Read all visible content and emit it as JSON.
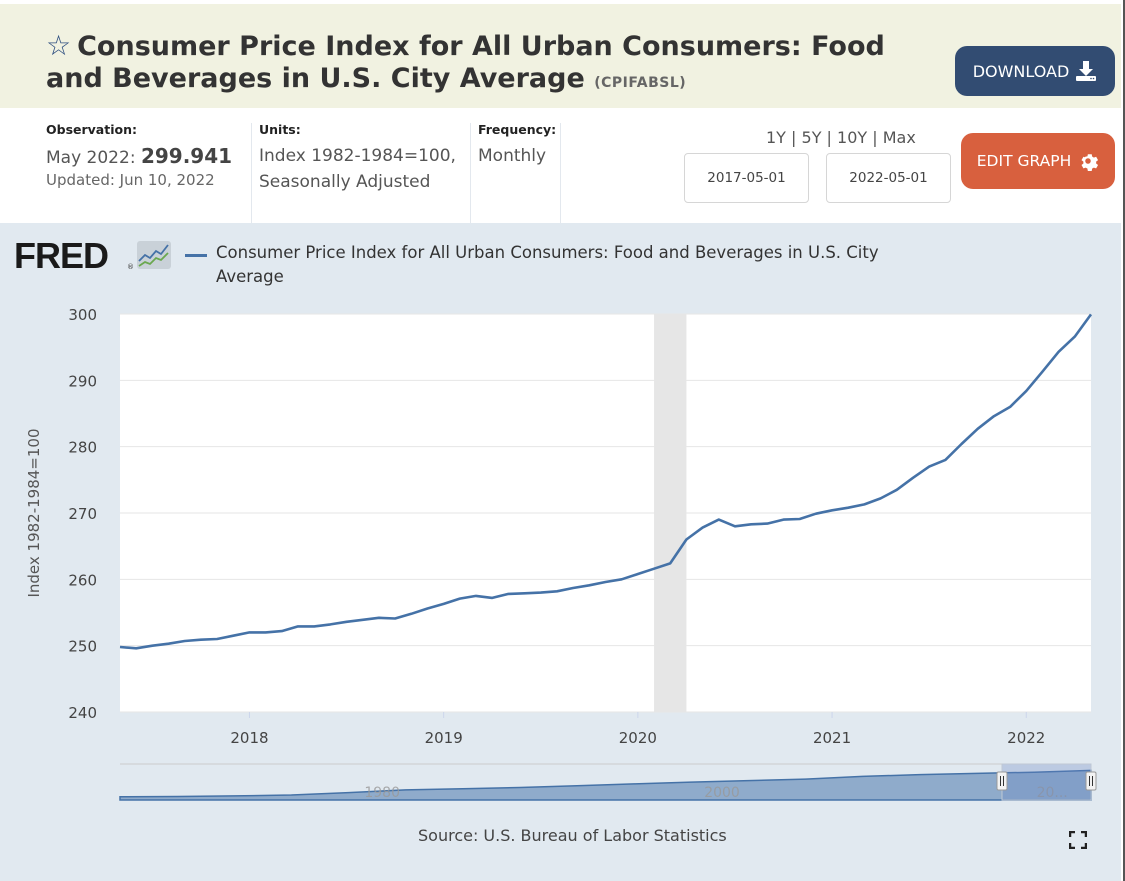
{
  "header": {
    "star_icon": "star-outline-icon",
    "title": "Consumer Price Index for All Urban Consumers: Food and Beverages in U.S. City Average",
    "series_code": "(CPIFABSL)",
    "download_label": "DOWNLOAD",
    "download_icon": "download-icon"
  },
  "meta": {
    "observation_label": "Observation:",
    "observation_period": "May 2022:",
    "observation_value": "299.941",
    "updated": "Updated: Jun 10, 2022",
    "units_label": "Units:",
    "units_line1": "Index 1982-1984=100,",
    "units_line2": "Seasonally Adjusted",
    "frequency_label": "Frequency:",
    "frequency_value": "Monthly"
  },
  "range_links": [
    "1Y",
    "5Y",
    "10Y",
    "Max"
  ],
  "date_range": {
    "start": "2017-05-01",
    "end": "2022-05-01"
  },
  "edit_graph_label": "EDIT GRAPH",
  "edit_graph_icon": "gear-icon",
  "logo": {
    "text": "FRED",
    "reg": "®"
  },
  "source": "Source: U.S. Bureau of Labor Statistics",
  "fullscreen_icon": "fullscreen-icon",
  "colors": {
    "series": "#4572a7",
    "recession": "#e6e6e6",
    "download_btn": "#324c72",
    "edit_btn": "#d8603e",
    "header_bg": "#f1f2e1",
    "chart_bg": "#e1e9f0"
  },
  "chart_data": {
    "type": "line",
    "title": "",
    "legend": "Consumer Price Index for All Urban Consumers: Food and Beverages in U.S. City Average",
    "legend_position": "top-left",
    "xlabel": "",
    "ylabel": "Index 1982-1984=100",
    "ylim": [
      240,
      300
    ],
    "yticks": [
      240,
      250,
      260,
      270,
      280,
      290,
      300
    ],
    "xticks": [
      "2018",
      "2019",
      "2020",
      "2021",
      "2022"
    ],
    "xrange": [
      "2017-05",
      "2022-05"
    ],
    "grid": true,
    "recession": {
      "start": "2020-02",
      "end": "2020-04"
    },
    "series": [
      {
        "name": "CPIFABSL",
        "x": [
          "2017-05",
          "2017-06",
          "2017-07",
          "2017-08",
          "2017-09",
          "2017-10",
          "2017-11",
          "2017-12",
          "2018-01",
          "2018-02",
          "2018-03",
          "2018-04",
          "2018-05",
          "2018-06",
          "2018-07",
          "2018-08",
          "2018-09",
          "2018-10",
          "2018-11",
          "2018-12",
          "2019-01",
          "2019-02",
          "2019-03",
          "2019-04",
          "2019-05",
          "2019-06",
          "2019-07",
          "2019-08",
          "2019-09",
          "2019-10",
          "2019-11",
          "2019-12",
          "2020-01",
          "2020-02",
          "2020-03",
          "2020-04",
          "2020-05",
          "2020-06",
          "2020-07",
          "2020-08",
          "2020-09",
          "2020-10",
          "2020-11",
          "2020-12",
          "2021-01",
          "2021-02",
          "2021-03",
          "2021-04",
          "2021-05",
          "2021-06",
          "2021-07",
          "2021-08",
          "2021-09",
          "2021-10",
          "2021-11",
          "2021-12",
          "2022-01",
          "2022-02",
          "2022-03",
          "2022-04",
          "2022-05"
        ],
        "values": [
          249.8,
          249.6,
          250.0,
          250.3,
          250.7,
          250.9,
          251.0,
          251.5,
          252.0,
          252.0,
          252.2,
          252.9,
          252.9,
          253.2,
          253.6,
          253.9,
          254.2,
          254.1,
          254.8,
          255.6,
          256.3,
          257.1,
          257.5,
          257.2,
          257.8,
          257.9,
          258.0,
          258.2,
          258.7,
          259.1,
          259.6,
          260.0,
          260.8,
          261.6,
          262.4,
          266.0,
          267.8,
          269.0,
          268.0,
          268.3,
          268.4,
          269.0,
          269.1,
          269.9,
          270.4,
          270.8,
          271.3,
          272.2,
          273.5,
          275.3,
          277.0,
          278.0,
          280.4,
          282.7,
          284.6,
          286.0,
          288.4,
          291.3,
          294.3,
          296.6,
          299.941
        ]
      }
    ],
    "navigator": {
      "labels": [
        "1980",
        "2000",
        "20..."
      ],
      "selected_range": [
        "2017-05",
        "2022-05"
      ]
    }
  }
}
